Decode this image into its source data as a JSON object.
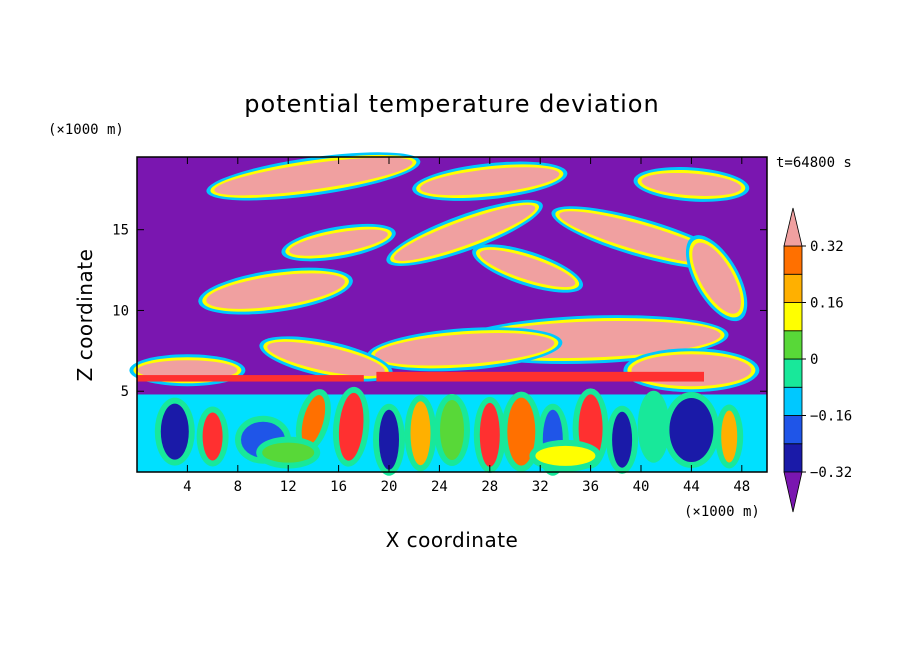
{
  "chart_data": {
    "type": "heatmap",
    "title": "potential temperature deviation",
    "time_label": "t=64800 s",
    "xlabel": "X coordinate",
    "ylabel": "Z coordinate",
    "x_unit": "(×1000 m)",
    "y_unit": "(×1000 m)",
    "xlim": [
      0,
      50
    ],
    "ylim": [
      0,
      19.5
    ],
    "xticks": [
      "4",
      "8",
      "12",
      "16",
      "20",
      "24",
      "28",
      "32",
      "36",
      "40",
      "44",
      "48"
    ],
    "yticks": [
      "5",
      "10",
      "15"
    ],
    "colorbar": {
      "levels": [
        -0.4,
        -0.32,
        -0.24,
        -0.16,
        -0.08,
        0,
        0.08,
        0.16,
        0.24,
        0.32,
        0.4
      ],
      "labels": [
        "−0.32",
        "−0.16",
        "0",
        "0.16",
        "0.32"
      ],
      "colors": [
        "#7a16b0",
        "#1a1aa8",
        "#1f55e8",
        "#00c8ff",
        "#18e89a",
        "#58d838",
        "#ffff00",
        "#ffb000",
        "#ff7000",
        "#ff3030",
        "#f0a0a0"
      ],
      "extend": "both"
    }
  }
}
